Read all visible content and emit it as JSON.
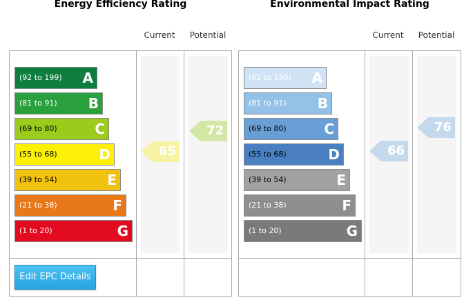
{
  "energy": {
    "title": "Energy Efficiency Rating",
    "current_label": "Current",
    "potential_label": "Potential",
    "bands": [
      {
        "letter": "A",
        "range": "(92 to 199)",
        "color": "#0d7e3e",
        "text_color": "#ffffff"
      },
      {
        "letter": "B",
        "range": "(81 to 91)",
        "color": "#2a9f3d",
        "text_color": "#ffffff"
      },
      {
        "letter": "C",
        "range": "(69 to 80)",
        "color": "#9bcb1b",
        "text_color": "#000000"
      },
      {
        "letter": "D",
        "range": "(55 to 68)",
        "color": "#fcf006",
        "text_color": "#000000"
      },
      {
        "letter": "E",
        "range": "(39 to 54)",
        "color": "#f1c10f",
        "text_color": "#000000"
      },
      {
        "letter": "F",
        "range": "(21 to 38)",
        "color": "#e9781a",
        "text_color": "#ffffff"
      },
      {
        "letter": "G",
        "range": "(1 to 20)",
        "color": "#e20b1f",
        "text_color": "#ffffff"
      }
    ],
    "current": {
      "value": "65",
      "color": "#f6f3a5"
    },
    "potential": {
      "value": "72",
      "color": "#d2e7a6"
    },
    "edit_button_label": "Edit EPC Details"
  },
  "environmental": {
    "title": "Environmental Impact Rating",
    "current_label": "Current",
    "potential_label": "Potential",
    "bands": [
      {
        "letter": "A",
        "range": "(92 to 199)",
        "color": "#cfe3f4",
        "text_color": "#ffffff"
      },
      {
        "letter": "B",
        "range": "(81 to 91)",
        "color": "#94c1e8",
        "text_color": "#ffffff"
      },
      {
        "letter": "C",
        "range": "(69 to 80)",
        "color": "#6a9fd6",
        "text_color": "#000000"
      },
      {
        "letter": "D",
        "range": "(55 to 68)",
        "color": "#4a80c2",
        "text_color": "#000000"
      },
      {
        "letter": "E",
        "range": "(39 to 54)",
        "color": "#a1a1a3",
        "text_color": "#000000"
      },
      {
        "letter": "F",
        "range": "(21 to 38)",
        "color": "#8e8e90",
        "text_color": "#ffffff"
      },
      {
        "letter": "G",
        "range": "(1 to 20)",
        "color": "#7a7a7c",
        "text_color": "#ffffff"
      }
    ],
    "current": {
      "value": "66",
      "color": "#c5d8ec"
    },
    "potential": {
      "value": "76",
      "color": "#c5d8ec"
    }
  }
}
